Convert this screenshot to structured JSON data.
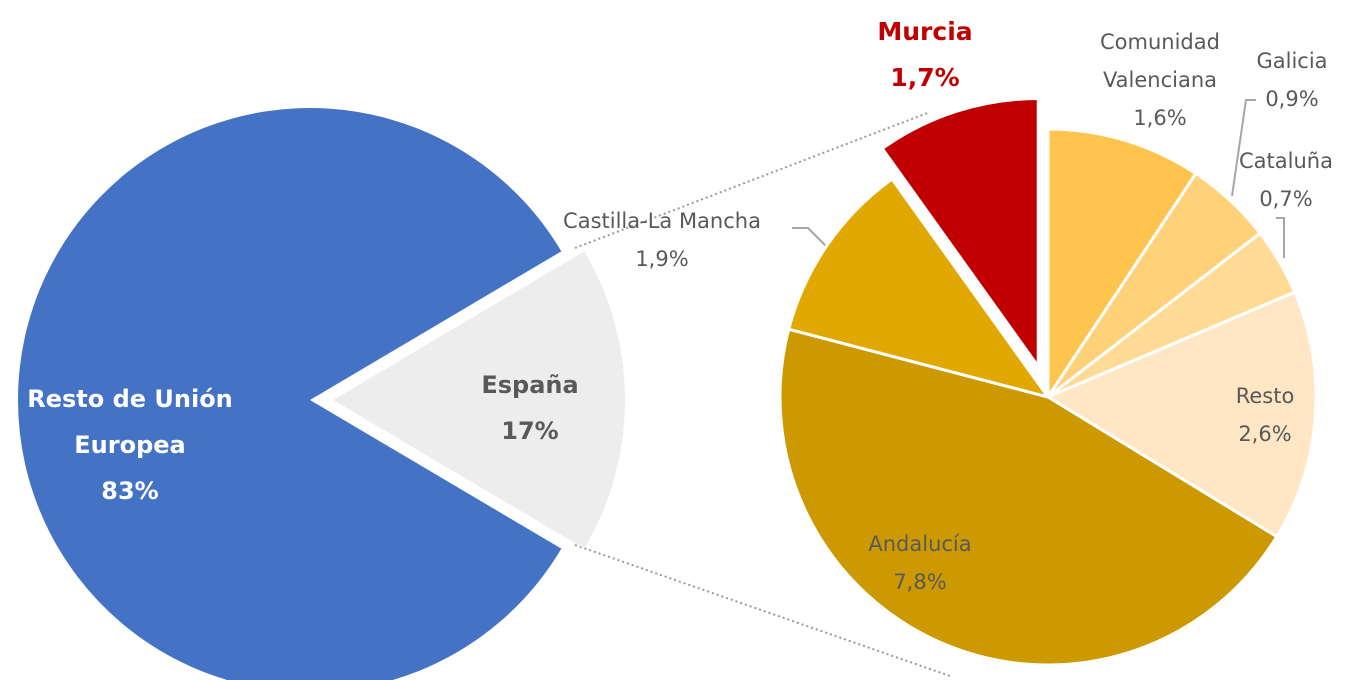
{
  "chart_data": [
    {
      "type": "pie",
      "categories": [
        "Resto de Unión Europea",
        "España"
      ],
      "values": [
        83,
        17
      ],
      "value_labels": [
        "83%",
        "17%"
      ],
      "colors": [
        "#4472c4",
        "#ededed"
      ]
    },
    {
      "type": "pie",
      "categories": [
        "Comunidad Valenciana",
        "Galicia",
        "Cataluña",
        "Resto",
        "Andalucía",
        "Castilla-La Mancha",
        "Murcia"
      ],
      "values": [
        1.6,
        0.9,
        0.7,
        2.6,
        7.8,
        1.9,
        1.7
      ],
      "value_labels": [
        "1,6%",
        "0,9%",
        "0,7%",
        "2,6%",
        "7,8%",
        "1,9%",
        "1,7%"
      ],
      "colors": [
        "#ffc44d",
        "#ffd27a",
        "#ffdb96",
        "#ffe6c4",
        "#cc9900",
        "#e0a800",
        "#c00000"
      ]
    }
  ]
}
